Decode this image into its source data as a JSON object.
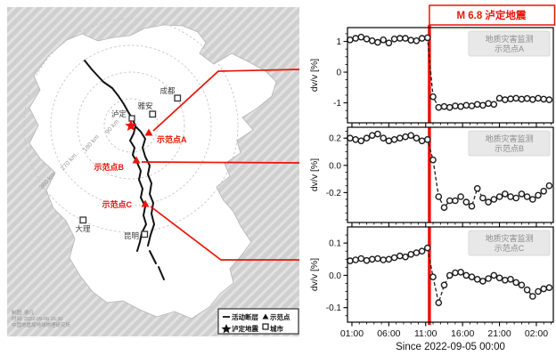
{
  "map": {
    "cities": [
      {
        "name": "成都"
      },
      {
        "name": "雅安"
      },
      {
        "name": "泸定"
      },
      {
        "name": "大理"
      },
      {
        "name": "昆明"
      }
    ],
    "sites": [
      {
        "label": "示范点A"
      },
      {
        "label": "示范点B"
      },
      {
        "label": "示范点C"
      }
    ],
    "ring_labels": [
      "90 km",
      "180 km",
      "270 km",
      "360 km"
    ],
    "legend": {
      "fault": "活动断层",
      "earthquake": "泸定地震",
      "site": "示范点",
      "city": "城市"
    },
    "credit": [
      "制图: 谢凡",
      "时间: 2022-09-06 16:30",
      "中国地震局地球物理研究所"
    ]
  },
  "chart_data": {
    "type": "line",
    "title": "M 6.8 泸定地震",
    "xlabel": "Since 2022-09-05 00:00",
    "ylabel": "dv/v [%]",
    "event_hour": 11.5,
    "x_ticks": {
      "hours": [
        1,
        6,
        11,
        16,
        21,
        26
      ],
      "labels": [
        "01:00",
        "06:00",
        "11:00",
        "16:00",
        "21:00",
        "02:00"
      ]
    },
    "xlim": [
      0.4,
      28.3
    ],
    "x_hours": [
      0.75,
      1.5,
      2.25,
      3.0,
      3.75,
      4.5,
      5.25,
      6.0,
      6.75,
      7.5,
      8.25,
      9.0,
      9.75,
      10.5,
      11.25,
      12.0,
      12.75,
      13.5,
      14.25,
      15.0,
      15.75,
      16.5,
      17.25,
      18.0,
      18.75,
      19.5,
      20.25,
      21.0,
      21.75,
      22.5,
      23.25,
      24.0,
      24.75,
      25.5,
      26.25,
      27.0,
      27.75
    ],
    "series": [
      {
        "name": "示范点A",
        "legend_lines": [
          "地质灾害监测",
          "示范点A"
        ],
        "ylim": [
          -1.65,
          1.45
        ],
        "yticks": [
          [
            -1,
            "-1"
          ],
          [
            0,
            "0"
          ],
          [
            1,
            "1"
          ]
        ],
        "minor_step": 0.25,
        "values": [
          1.05,
          1.1,
          1.14,
          1.08,
          1.02,
          0.97,
          1.05,
          0.95,
          1.08,
          1.1,
          1.1,
          1.04,
          1.02,
          1.1,
          1.12,
          -0.8,
          -1.15,
          -1.12,
          -1.15,
          -1.1,
          -1.12,
          -1.08,
          -1.1,
          -1.05,
          -1.08,
          -1.02,
          -1.05,
          -0.85,
          -0.9,
          -0.87,
          -0.85,
          -0.88,
          -0.86,
          -0.89,
          -0.85,
          -0.88,
          -0.9
        ]
      },
      {
        "name": "示范点B",
        "legend_lines": [
          "地质灾害监测",
          "示范点B"
        ],
        "ylim": [
          -0.42,
          0.28
        ],
        "yticks": [
          [
            -0.2,
            "-0.2"
          ],
          [
            0,
            "0.0"
          ],
          [
            0.2,
            "0.2"
          ]
        ],
        "minor_step": 0.05,
        "values": [
          0.2,
          0.19,
          0.18,
          0.2,
          0.22,
          0.23,
          0.2,
          0.18,
          0.19,
          0.2,
          0.21,
          0.22,
          0.2,
          0.18,
          0.19,
          0.04,
          -0.23,
          -0.31,
          -0.26,
          -0.26,
          -0.23,
          -0.27,
          -0.3,
          -0.17,
          -0.24,
          -0.27,
          -0.25,
          -0.23,
          -0.21,
          -0.23,
          -0.24,
          -0.21,
          -0.23,
          -0.25,
          -0.22,
          -0.19,
          -0.15
        ]
      },
      {
        "name": "示范点C",
        "legend_lines": [
          "地质灾害监测",
          "示范点C"
        ],
        "ylim": [
          -0.145,
          0.15
        ],
        "yticks": [
          [
            -0.1,
            "-0.1"
          ],
          [
            0,
            "0.0"
          ],
          [
            0.1,
            "0.1"
          ]
        ],
        "minor_step": 0.025,
        "values": [
          0.045,
          0.048,
          0.052,
          0.046,
          0.05,
          0.052,
          0.048,
          0.05,
          0.055,
          0.06,
          0.057,
          0.065,
          0.07,
          0.075,
          0.085,
          -0.005,
          -0.085,
          -0.03,
          0.0,
          0.008,
          0.01,
          0.0,
          -0.005,
          -0.012,
          -0.018,
          -0.01,
          0.0,
          -0.008,
          -0.015,
          -0.012,
          -0.022,
          -0.03,
          -0.045,
          -0.065,
          -0.05,
          -0.042,
          -0.038
        ]
      }
    ],
    "colors": {
      "event_red": "#ea1408",
      "marker_stroke": "#1a1a1a",
      "legend_bg": "#e8e8e8",
      "legend_text": "#8c8c8c"
    }
  }
}
